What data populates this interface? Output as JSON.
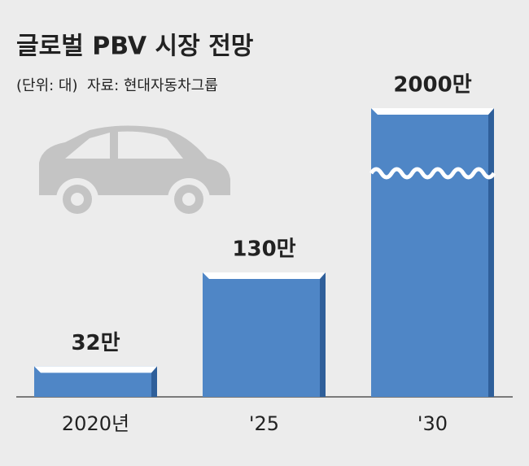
{
  "chart_data": {
    "type": "bar",
    "title": "글로벌 PBV 시장 전망",
    "subtitle": "(단위: 대)  자료: 현대자동차그룹",
    "categories": [
      "2020년",
      "'25",
      "'30"
    ],
    "values": [
      32,
      130,
      2000
    ],
    "value_labels": [
      "32만",
      "130만",
      "2000만"
    ],
    "color": "#4f86c6",
    "axis_break": true
  }
}
